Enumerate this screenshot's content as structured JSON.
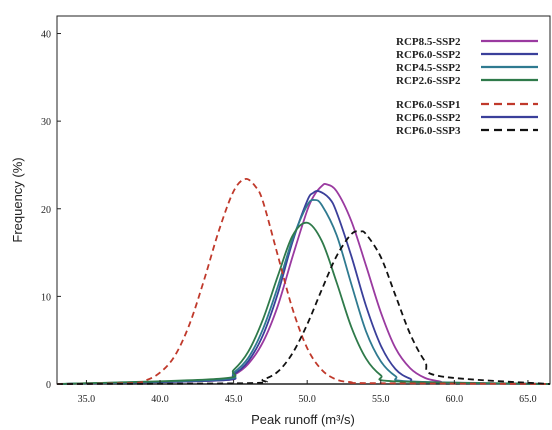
{
  "chart_data": {
    "type": "line",
    "title": "",
    "xlabel": "Peak runoff (m³/s)",
    "ylabel": "Frequency (%)",
    "xlim": [
      33.0,
      66.5
    ],
    "ylim": [
      0,
      42
    ],
    "xticks": [
      35.0,
      40.0,
      45.0,
      50.0,
      55.0,
      60.0,
      65.0
    ],
    "xtick_labels": [
      "35.0",
      "40.0",
      "45.0",
      "50.0",
      "55.0",
      "60.0",
      "65.0"
    ],
    "yticks": [
      0,
      10,
      20,
      30,
      40
    ],
    "ytick_labels": [
      "0",
      "10",
      "20",
      "30",
      "40"
    ],
    "grid": false,
    "legend_position": "top-right",
    "series": [
      {
        "name": "RCP8.5-SSP2",
        "color": "#9a3aa0",
        "dash": "solid",
        "x": [
          44,
          45,
          46,
          47,
          48,
          49,
          50,
          50.5,
          51,
          51.3,
          52,
          53,
          54,
          55,
          56,
          57,
          58,
          59,
          60
        ],
        "y": [
          0.4,
          1.0,
          2.3,
          4.8,
          8.9,
          14.5,
          19.8,
          21.6,
          22.6,
          22.8,
          22.0,
          18.6,
          13.5,
          8.2,
          4.1,
          1.8,
          0.7,
          0.3,
          0.1
        ]
      },
      {
        "name": "RCP6.0-SSP2",
        "color": "#3a3f9a",
        "dash": "solid",
        "x": [
          44,
          45,
          46,
          47,
          48,
          49,
          50,
          50.4,
          50.8,
          51.5,
          52,
          53,
          54,
          55,
          56,
          57,
          58
        ],
        "y": [
          0.4,
          1.1,
          2.6,
          5.6,
          10.3,
          16.2,
          20.9,
          21.8,
          22.0,
          21.2,
          19.6,
          14.6,
          8.9,
          4.4,
          1.7,
          0.6,
          0.2
        ]
      },
      {
        "name": "RCP4.5-SSP2",
        "color": "#2f7a90",
        "dash": "solid",
        "x": [
          44,
          45,
          46,
          47,
          48,
          49,
          50,
          50.5,
          51,
          52,
          53,
          54,
          55,
          56,
          57
        ],
        "y": [
          0.5,
          1.3,
          3.0,
          6.3,
          11.1,
          16.5,
          20.4,
          21.0,
          20.4,
          17.0,
          11.4,
          6.0,
          2.6,
          0.9,
          0.3
        ]
      },
      {
        "name": "RCP2.6-SSP2",
        "color": "#2f7a4a",
        "dash": "solid",
        "x": [
          44,
          45,
          46,
          47,
          48,
          49,
          50,
          51,
          52,
          53,
          54,
          55,
          56
        ],
        "y": [
          0.6,
          1.6,
          3.7,
          7.4,
          12.3,
          16.9,
          18.4,
          16.3,
          11.6,
          6.5,
          2.9,
          1.0,
          0.3
        ]
      },
      {
        "name": "RCP6.0-SSP1",
        "color": "#c0392b",
        "dash": "dashed",
        "x": [
          38,
          39,
          40,
          41,
          42,
          43,
          44,
          45,
          45.8,
          46.5,
          47,
          48,
          49,
          50,
          51,
          52,
          53,
          54
        ],
        "y": [
          0.1,
          0.4,
          1.3,
          3.2,
          6.8,
          11.9,
          17.5,
          22.0,
          23.4,
          22.5,
          20.8,
          14.7,
          8.6,
          4.1,
          1.6,
          0.5,
          0.2,
          0.1
        ]
      },
      {
        "name": "RCP6.0-SSP2",
        "color": "#3a3f9a",
        "dash": "solid",
        "legend_only": true,
        "x": [],
        "y": []
      },
      {
        "name": "RCP6.0-SSP3",
        "color": "#111111",
        "dash": "dashed",
        "x": [
          46,
          47,
          48,
          49,
          50,
          51,
          52,
          53,
          53.6,
          54,
          55,
          56,
          57,
          58,
          59
        ],
        "y": [
          0.1,
          0.5,
          1.4,
          3.5,
          6.8,
          10.8,
          14.6,
          17.1,
          17.4,
          17.1,
          14.5,
          10.1,
          5.7,
          2.6,
          0.9
        ]
      }
    ]
  }
}
